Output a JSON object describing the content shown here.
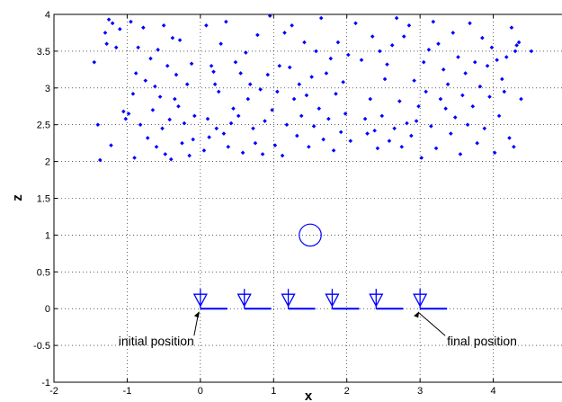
{
  "chart_data": {
    "type": "scatter",
    "xlabel": "x",
    "ylabel": "z",
    "xlim": [
      -2,
      5
    ],
    "ylim": [
      -1,
      4
    ],
    "grid": true,
    "x_ticks": [
      "-2",
      "-1",
      "0",
      "1",
      "2",
      "3",
      "4"
    ],
    "y_ticks": [
      "-1",
      "-0.5",
      "0",
      "0.5",
      "1",
      "1.5",
      "2",
      "2.5",
      "3",
      "3.5",
      "4"
    ],
    "point_color": "#0000ff",
    "points": [
      [
        -1.45,
        3.35
      ],
      [
        -1.4,
        2.5
      ],
      [
        -1.37,
        2.02
      ],
      [
        -1.3,
        3.75
      ],
      [
        -1.28,
        3.6
      ],
      [
        -1.25,
        3.93
      ],
      [
        -1.22,
        2.22
      ],
      [
        -1.2,
        3.88
      ],
      [
        -1.15,
        3.55
      ],
      [
        -1.1,
        3.8
      ],
      [
        -1.05,
        2.68
      ],
      [
        -1.02,
        2.58
      ],
      [
        -0.98,
        2.65
      ],
      [
        -0.95,
        3.9
      ],
      [
        -0.92,
        2.92
      ],
      [
        -0.9,
        2.05
      ],
      [
        -0.88,
        3.2
      ],
      [
        -0.85,
        3.55
      ],
      [
        -0.82,
        2.5
      ],
      [
        -0.78,
        3.82
      ],
      [
        -0.75,
        3.1
      ],
      [
        -0.72,
        2.32
      ],
      [
        -0.68,
        3.4
      ],
      [
        -0.65,
        2.7
      ],
      [
        -0.62,
        3.02
      ],
      [
        -0.6,
        2.2
      ],
      [
        -0.58,
        3.52
      ],
      [
        -0.55,
        2.88
      ],
      [
        -0.52,
        2.45
      ],
      [
        -0.5,
        3.85
      ],
      [
        -0.48,
        2.1
      ],
      [
        -0.45,
        3.3
      ],
      [
        -0.42,
        2.57
      ],
      [
        -0.4,
        2.03
      ],
      [
        -0.38,
        3.68
      ],
      [
        -0.35,
        2.85
      ],
      [
        -0.33,
        3.18
      ],
      [
        -0.3,
        2.75
      ],
      [
        -0.28,
        3.65
      ],
      [
        -0.25,
        2.25
      ],
      [
        -0.22,
        2.52
      ],
      [
        -0.18,
        3.05
      ],
      [
        -0.15,
        2.08
      ],
      [
        -0.12,
        3.33
      ],
      [
        -0.1,
        2.3
      ],
      [
        -0.08,
        2.62
      ],
      [
        0.05,
        2.15
      ],
      [
        0.08,
        3.85
      ],
      [
        0.1,
        2.58
      ],
      [
        0.12,
        2.33
      ],
      [
        0.15,
        3.3
      ],
      [
        0.18,
        3.22
      ],
      [
        0.2,
        3.05
      ],
      [
        0.22,
        2.45
      ],
      [
        0.25,
        2.95
      ],
      [
        0.28,
        3.6
      ],
      [
        0.32,
        2.38
      ],
      [
        0.35,
        3.9
      ],
      [
        0.38,
        2.2
      ],
      [
        0.42,
        2.52
      ],
      [
        0.45,
        2.72
      ],
      [
        0.48,
        3.35
      ],
      [
        0.52,
        2.62
      ],
      [
        0.55,
        3.2
      ],
      [
        0.58,
        2.12
      ],
      [
        0.62,
        3.48
      ],
      [
        0.65,
        2.85
      ],
      [
        0.68,
        3.05
      ],
      [
        0.72,
        2.45
      ],
      [
        0.75,
        2.25
      ],
      [
        0.78,
        3.72
      ],
      [
        0.82,
        2.98
      ],
      [
        0.85,
        2.1
      ],
      [
        0.88,
        2.55
      ],
      [
        0.92,
        3.18
      ],
      [
        0.95,
        3.98
      ],
      [
        0.98,
        2.7
      ],
      [
        1.02,
        2.22
      ],
      [
        1.05,
        2.95
      ],
      [
        1.08,
        3.3
      ],
      [
        1.12,
        2.08
      ],
      [
        1.15,
        3.75
      ],
      [
        1.18,
        2.5
      ],
      [
        1.22,
        3.28
      ],
      [
        1.25,
        3.85
      ],
      [
        1.28,
        2.85
      ],
      [
        1.32,
        2.35
      ],
      [
        1.35,
        3.05
      ],
      [
        1.38,
        2.62
      ],
      [
        1.42,
        3.62
      ],
      [
        1.45,
        2.9
      ],
      [
        1.48,
        2.2
      ],
      [
        1.52,
        3.15
      ],
      [
        1.55,
        2.48
      ],
      [
        1.58,
        3.5
      ],
      [
        1.62,
        2.72
      ],
      [
        1.65,
        3.95
      ],
      [
        1.68,
        2.3
      ],
      [
        1.72,
        3.2
      ],
      [
        1.75,
        2.58
      ],
      [
        1.78,
        3.4
      ],
      [
        1.82,
        2.15
      ],
      [
        1.85,
        2.92
      ],
      [
        1.88,
        3.62
      ],
      [
        1.92,
        2.4
      ],
      [
        1.95,
        3.08
      ],
      [
        1.98,
        2.65
      ],
      [
        2.02,
        3.45
      ],
      [
        2.05,
        2.28
      ],
      [
        2.12,
        3.88
      ],
      [
        2.2,
        3.38
      ],
      [
        2.25,
        2.58
      ],
      [
        2.28,
        2.38
      ],
      [
        2.32,
        2.85
      ],
      [
        2.35,
        3.7
      ],
      [
        2.38,
        2.42
      ],
      [
        2.42,
        2.18
      ],
      [
        2.45,
        3.5
      ],
      [
        2.48,
        2.62
      ],
      [
        2.52,
        3.12
      ],
      [
        2.55,
        3.32
      ],
      [
        2.58,
        2.28
      ],
      [
        2.62,
        3.58
      ],
      [
        2.65,
        2.45
      ],
      [
        2.68,
        3.95
      ],
      [
        2.72,
        2.82
      ],
      [
        2.75,
        2.2
      ],
      [
        2.78,
        3.7
      ],
      [
        2.82,
        2.52
      ],
      [
        2.85,
        3.85
      ],
      [
        2.88,
        2.35
      ],
      [
        2.92,
        3.1
      ],
      [
        2.95,
        2.55
      ],
      [
        2.98,
        2.75
      ],
      [
        3.02,
        2.05
      ],
      [
        3.05,
        3.35
      ],
      [
        3.08,
        2.95
      ],
      [
        3.12,
        3.52
      ],
      [
        3.15,
        2.48
      ],
      [
        3.18,
        3.9
      ],
      [
        3.22,
        2.18
      ],
      [
        3.25,
        3.6
      ],
      [
        3.28,
        2.85
      ],
      [
        3.32,
        3.25
      ],
      [
        3.35,
        2.72
      ],
      [
        3.38,
        3.05
      ],
      [
        3.42,
        2.38
      ],
      [
        3.45,
        3.75
      ],
      [
        3.48,
        2.6
      ],
      [
        3.52,
        3.42
      ],
      [
        3.55,
        2.1
      ],
      [
        3.58,
        2.9
      ],
      [
        3.62,
        3.2
      ],
      [
        3.65,
        2.5
      ],
      [
        3.68,
        3.88
      ],
      [
        3.72,
        2.75
      ],
      [
        3.75,
        3.35
      ],
      [
        3.78,
        2.25
      ],
      [
        3.82,
        3.02
      ],
      [
        3.85,
        3.68
      ],
      [
        3.88,
        2.45
      ],
      [
        3.92,
        3.3
      ],
      [
        3.95,
        2.88
      ],
      [
        3.98,
        3.55
      ],
      [
        4.02,
        2.12
      ],
      [
        4.05,
        3.38
      ],
      [
        4.08,
        2.62
      ],
      [
        4.12,
        3.12
      ],
      [
        4.15,
        2.95
      ],
      [
        4.18,
        3.42
      ],
      [
        4.22,
        2.32
      ],
      [
        4.25,
        3.82
      ],
      [
        4.28,
        2.2
      ],
      [
        4.3,
        3.5
      ],
      [
        4.32,
        3.58
      ],
      [
        4.35,
        3.62
      ],
      [
        4.38,
        2.85
      ],
      [
        4.52,
        3.5
      ]
    ],
    "target_circle": {
      "x": 1.5,
      "z": 1.0,
      "radius": 0.15
    },
    "positions": [
      0.0,
      0.6,
      1.2,
      1.8,
      2.4,
      3.0
    ],
    "annotations": [
      {
        "text": "initial position",
        "x": 0.0
      },
      {
        "text": "final position",
        "x": 3.0
      }
    ]
  }
}
